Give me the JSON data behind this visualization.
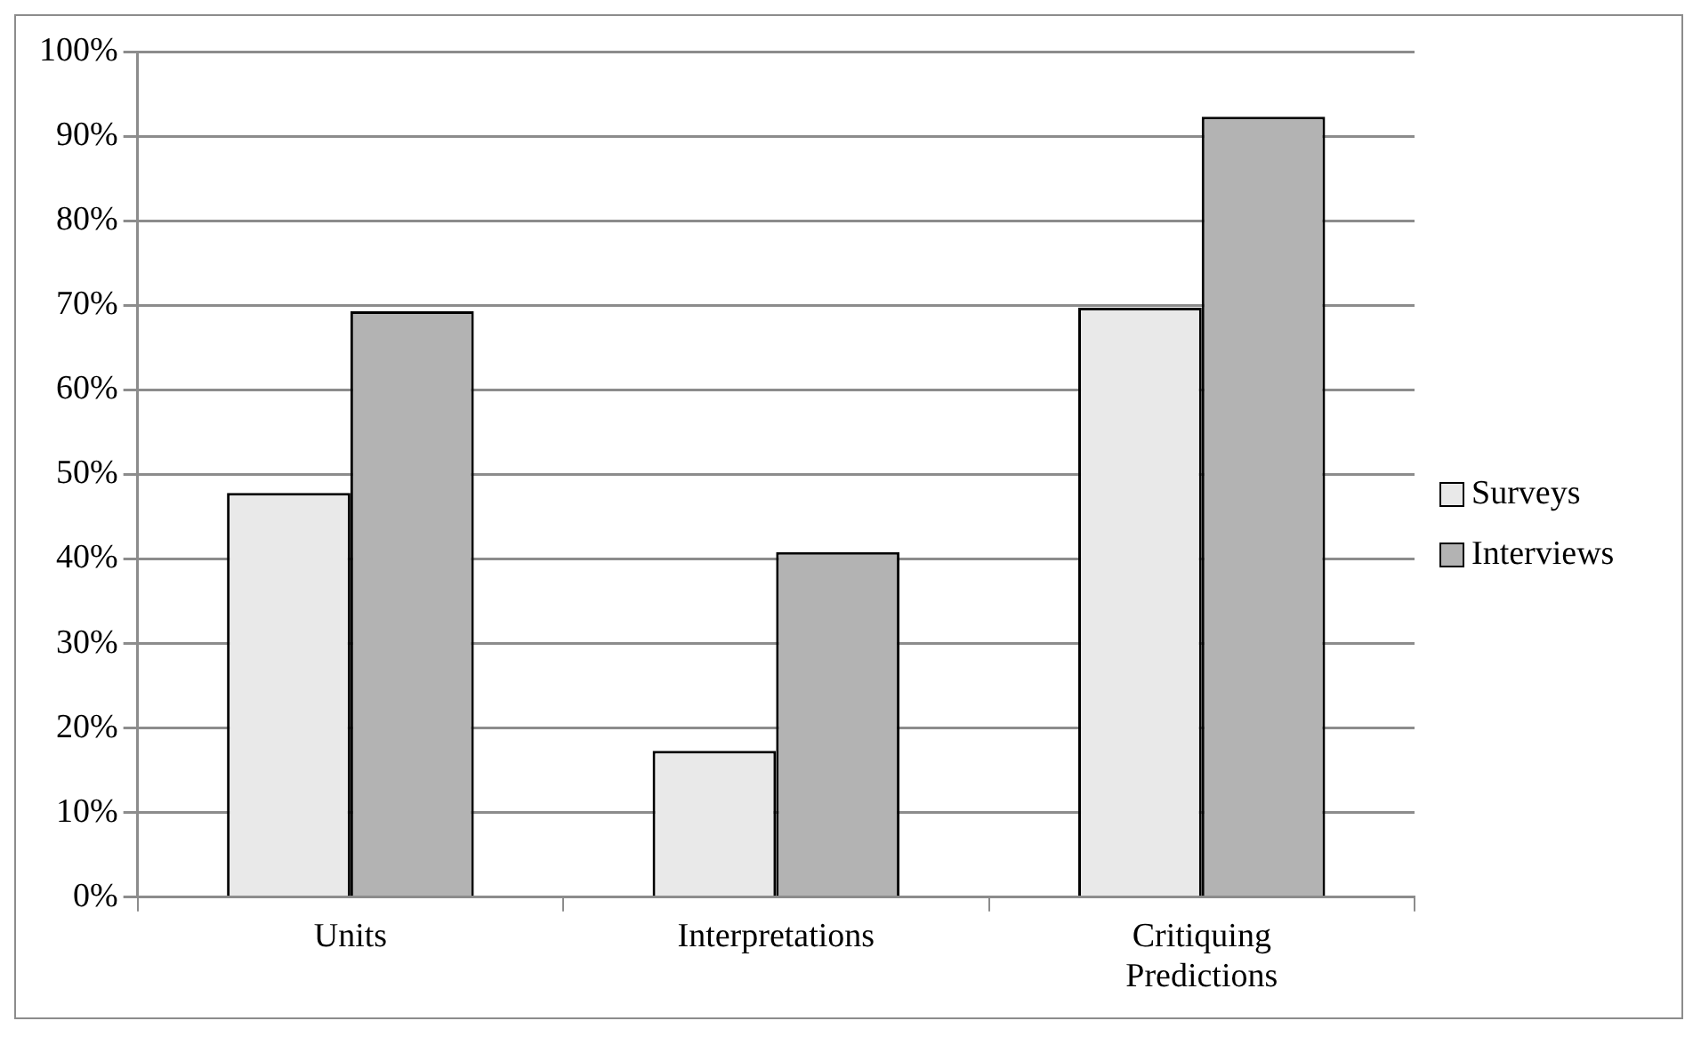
{
  "chart_data": {
    "type": "bar",
    "categories": [
      "Units",
      "Interpretations",
      "Critiquing Predictions"
    ],
    "series": [
      {
        "name": "Surveys",
        "color": "#e9e9e9",
        "values": [
          47.8,
          17.3,
          69.7
        ]
      },
      {
        "name": "Interviews",
        "color": "#b3b3b3",
        "values": [
          69.3,
          40.8,
          92.3
        ]
      }
    ],
    "ylim": [
      0,
      100
    ],
    "yticks": [
      {
        "value": 0,
        "label": "0%"
      },
      {
        "value": 10,
        "label": "10%"
      },
      {
        "value": 20,
        "label": "20%"
      },
      {
        "value": 30,
        "label": "30%"
      },
      {
        "value": 40,
        "label": "40%"
      },
      {
        "value": 50,
        "label": "50%"
      },
      {
        "value": 60,
        "label": "60%"
      },
      {
        "value": 70,
        "label": "70%"
      },
      {
        "value": 80,
        "label": "80%"
      },
      {
        "value": 90,
        "label": "90%"
      },
      {
        "value": 100,
        "label": "100%"
      }
    ],
    "grid": "y",
    "legend": "right"
  }
}
